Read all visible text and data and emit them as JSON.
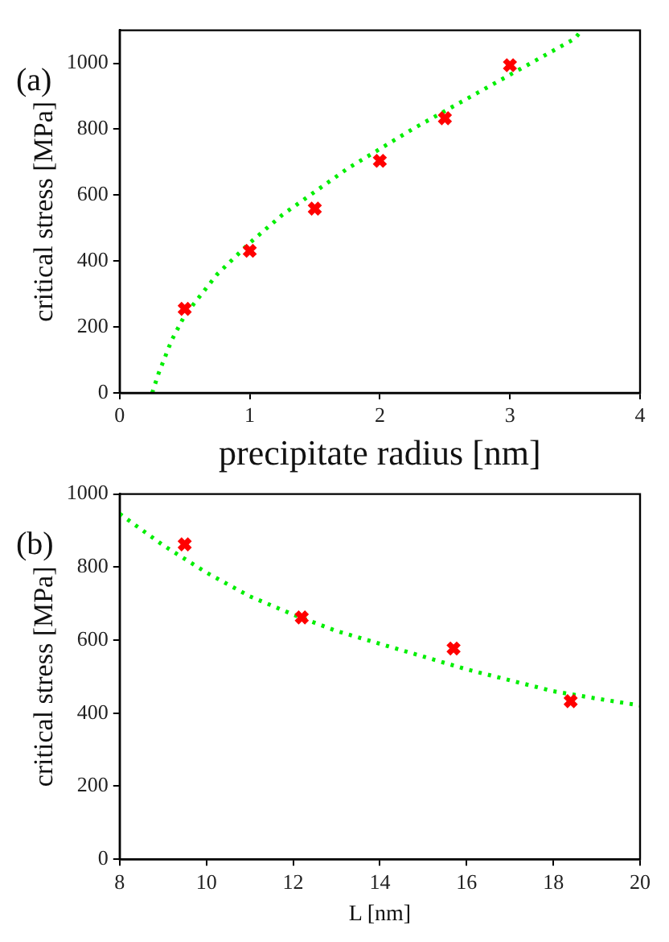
{
  "chart_data": [
    {
      "type": "scatter",
      "xlabel": "precipitate radius [nm]",
      "ylabel": "critical stress [MPa]",
      "annotations": [
        "(a)"
      ],
      "xlim": [
        0,
        4
      ],
      "xticks": [
        0,
        1,
        2,
        3,
        4
      ],
      "ylim": [
        0,
        1100
      ],
      "yticks": [
        0,
        200,
        400,
        600,
        800,
        1000
      ],
      "grid": false,
      "legend": false,
      "series": [
        {
          "type": "scatter",
          "color": "#ff0000",
          "marker": "cross",
          "x": [
            0.5,
            1,
            1.5,
            2,
            2.5,
            3
          ],
          "values": [
            255,
            431,
            559,
            704,
            833,
            994
          ]
        },
        {
          "type": "line",
          "color": "#00ee00",
          "marker": "none",
          "line_style": "dotted",
          "x": [
            0.25,
            0.3,
            0.4,
            0.5,
            0.75,
            1,
            1.25,
            1.5,
            1.75,
            2,
            2.25,
            2.5,
            2.75,
            3,
            3.25,
            3.5,
            3.55
          ],
          "values": [
            0,
            60,
            160,
            235,
            360,
            455,
            540,
            610,
            680,
            740,
            800,
            855,
            910,
            965,
            1020,
            1075,
            1100
          ]
        }
      ]
    },
    {
      "type": "scatter",
      "xlabel": "L [nm]",
      "ylabel": "critical stress [MPa]",
      "annotations": [
        "(b)"
      ],
      "xlim": [
        8,
        20
      ],
      "xticks": [
        8,
        10,
        12,
        14,
        16,
        18,
        20
      ],
      "ylim": [
        0,
        1000
      ],
      "yticks": [
        0,
        200,
        400,
        600,
        800,
        1000
      ],
      "grid": false,
      "legend": false,
      "series": [
        {
          "type": "scatter",
          "color": "#ff0000",
          "marker": "cross",
          "x": [
            9.5,
            12.2,
            15.7,
            18.4
          ],
          "values": [
            862,
            662,
            577,
            433
          ]
        },
        {
          "type": "line",
          "color": "#00ee00",
          "marker": "none",
          "line_style": "dotted",
          "x": [
            8,
            9,
            10,
            11,
            12,
            13,
            14,
            15,
            16,
            17,
            18,
            19,
            20
          ],
          "values": [
            946,
            860,
            785,
            720,
            670,
            625,
            590,
            555,
            520,
            490,
            460,
            440,
            421
          ]
        }
      ]
    }
  ]
}
